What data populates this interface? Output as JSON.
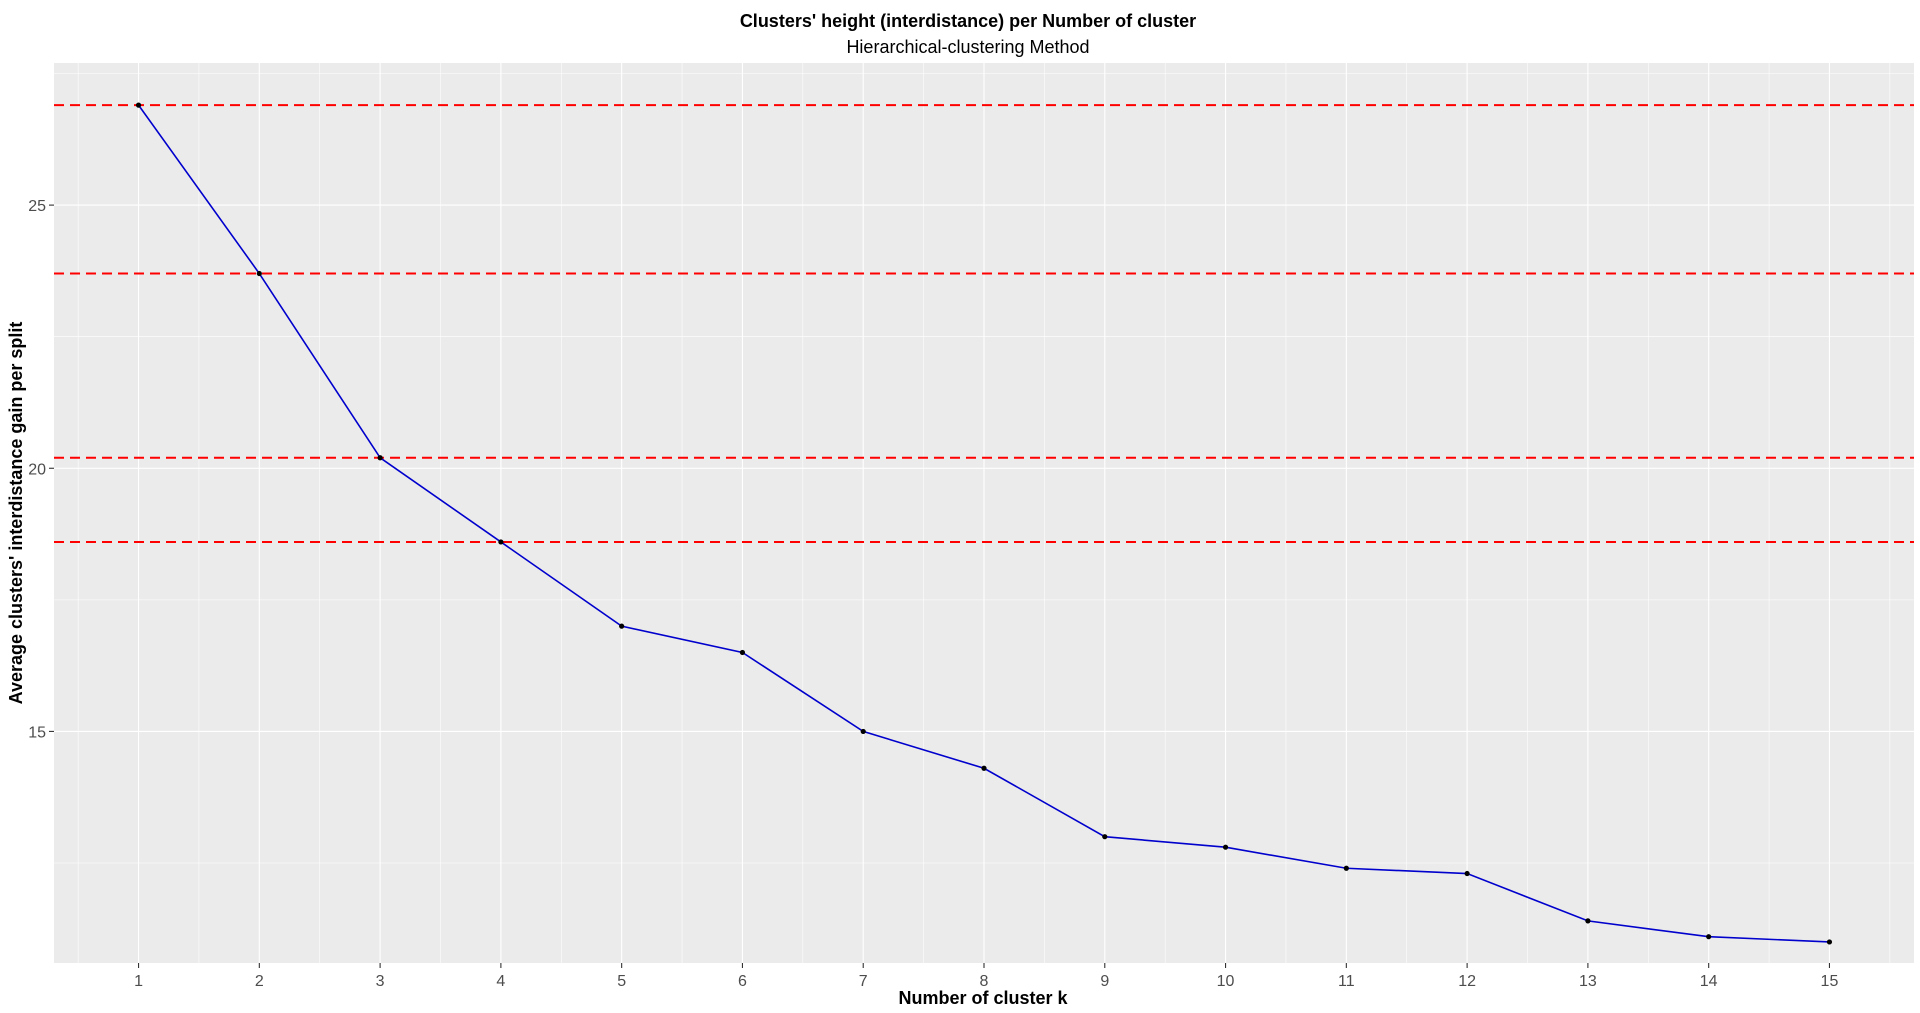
{
  "chart_data": {
    "type": "line",
    "title": "Clusters' height (interdistance) per Number of cluster",
    "subtitle": "Hierarchical-clustering Method",
    "xlabel": "Number of cluster k",
    "ylabel": "Average clusters' interdistance gain per split",
    "x": [
      1,
      2,
      3,
      4,
      5,
      6,
      7,
      8,
      9,
      10,
      11,
      12,
      13,
      14,
      15
    ],
    "series": [
      {
        "values": [
          26.9,
          23.7,
          20.2,
          18.6,
          17.0,
          16.5,
          15.0,
          14.3,
          13.0,
          12.8,
          12.4,
          12.3,
          11.4,
          11.1,
          11.0
        ]
      }
    ],
    "hlines": [
      26.9,
      23.7,
      20.2,
      18.6
    ],
    "xticks": [
      "1",
      "2",
      "3",
      "4",
      "5",
      "6",
      "7",
      "8",
      "9",
      "10",
      "11",
      "12",
      "13",
      "14",
      "15"
    ],
    "yticks": [
      "15",
      "20",
      "25"
    ],
    "xlim": [
      0.3,
      15.7
    ],
    "ylim": [
      10.6,
      27.7
    ],
    "grid": true,
    "colors": {
      "line": "#0000cd",
      "point": "#000000",
      "hline": "#ff0000",
      "panel": "#ebebeb",
      "grid": "#ffffff"
    }
  }
}
